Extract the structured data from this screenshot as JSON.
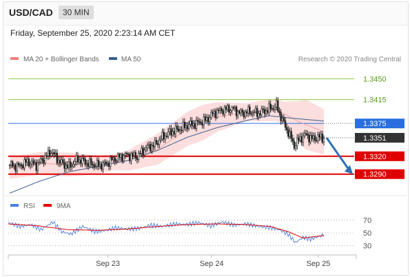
{
  "header": {
    "symbol": "USD/CAD",
    "timeframe": "30 MIN",
    "datetime": "Friday, September 25, 2020 2:23:14 AM CET"
  },
  "legend": {
    "items": [
      {
        "label": "MA 20 + Bollinger Bands",
        "color": "#f08080"
      },
      {
        "label": "MA 50",
        "color": "#3a5f8f"
      }
    ],
    "credit": "Research © 2020 Trading Central"
  },
  "colors": {
    "support": "#e00000",
    "pivot": "#2a6fe0",
    "resistance": "#8cc63f",
    "current": "#333333",
    "ma50": "#3a5f8f",
    "bollinger": "#fbd3d3",
    "rsi": "#4a7fe0",
    "rsi_ma": "#e00000",
    "arrow": "#2d6fb5"
  },
  "chart_data": [
    {
      "type": "candlestick",
      "title": "USD/CAD 30 MIN",
      "xlabel": "",
      "ylabel": "",
      "ylim": [
        1.3255,
        1.347
      ],
      "x_ticks": [
        "Sep 23",
        "Sep 24",
        "Sep 25"
      ],
      "levels": [
        {
          "label": "1.3450",
          "value": 1.345,
          "kind": "resistance"
        },
        {
          "label": "1.3415",
          "value": 1.3415,
          "kind": "resistance"
        },
        {
          "label": "1.3375",
          "value": 1.3375,
          "kind": "pivot"
        },
        {
          "label": "1.3351",
          "value": 1.3351,
          "kind": "current"
        },
        {
          "label": "1.3320",
          "value": 1.332,
          "kind": "support"
        },
        {
          "label": "1.3290",
          "value": 1.329,
          "kind": "support"
        }
      ],
      "close_anchors": [
        [
          0,
          1.3305
        ],
        [
          6,
          1.3303
        ],
        [
          12,
          1.3311
        ],
        [
          18,
          1.3305
        ],
        [
          24,
          1.3318
        ],
        [
          28,
          1.3328
        ],
        [
          34,
          1.331
        ],
        [
          40,
          1.3302
        ],
        [
          46,
          1.3315
        ],
        [
          52,
          1.3309
        ],
        [
          58,
          1.3305
        ],
        [
          64,
          1.3306
        ],
        [
          70,
          1.3315
        ],
        [
          78,
          1.3322
        ],
        [
          86,
          1.332
        ],
        [
          92,
          1.3334
        ],
        [
          98,
          1.3339
        ],
        [
          102,
          1.335
        ],
        [
          108,
          1.336
        ],
        [
          114,
          1.3365
        ],
        [
          120,
          1.3372
        ],
        [
          126,
          1.3375
        ],
        [
          132,
          1.338
        ],
        [
          138,
          1.3393
        ],
        [
          144,
          1.3398
        ],
        [
          150,
          1.34
        ],
        [
          156,
          1.3392
        ],
        [
          162,
          1.3395
        ],
        [
          168,
          1.3392
        ],
        [
          174,
          1.3398
        ],
        [
          180,
          1.3405
        ],
        [
          184,
          1.338
        ],
        [
          188,
          1.336
        ],
        [
          192,
          1.3338
        ],
        [
          196,
          1.335
        ],
        [
          200,
          1.3356
        ],
        [
          204,
          1.3349
        ],
        [
          208,
          1.3352
        ],
        [
          212,
          1.3351
        ]
      ],
      "ma50_anchors": [
        [
          0,
          1.3258
        ],
        [
          20,
          1.3278
        ],
        [
          40,
          1.3294
        ],
        [
          60,
          1.3303
        ],
        [
          80,
          1.3313
        ],
        [
          100,
          1.333
        ],
        [
          120,
          1.3352
        ],
        [
          140,
          1.3368
        ],
        [
          160,
          1.338
        ],
        [
          175,
          1.3388
        ],
        [
          190,
          1.3384
        ],
        [
          212,
          1.3379
        ]
      ],
      "ma20_anchors": [
        [
          0,
          1.33
        ],
        [
          20,
          1.3308
        ],
        [
          40,
          1.3306
        ],
        [
          60,
          1.3306
        ],
        [
          80,
          1.3313
        ],
        [
          100,
          1.3332
        ],
        [
          120,
          1.3366
        ],
        [
          140,
          1.3386
        ],
        [
          160,
          1.3394
        ],
        [
          180,
          1.3398
        ],
        [
          195,
          1.3378
        ],
        [
          212,
          1.3361
        ]
      ],
      "band_width_anchors": [
        [
          0,
          0.0018
        ],
        [
          40,
          0.002
        ],
        [
          70,
          0.0013
        ],
        [
          100,
          0.0026
        ],
        [
          130,
          0.003
        ],
        [
          160,
          0.0015
        ],
        [
          185,
          0.002
        ],
        [
          200,
          0.0042
        ],
        [
          212,
          0.0038
        ]
      ],
      "forecast_arrow": {
        "from": 1.3351,
        "to": 1.329
      }
    },
    {
      "type": "line",
      "title": "",
      "ylim": [
        20,
        80
      ],
      "y_ticks": [
        70,
        50,
        30
      ],
      "x_ticks": [
        "Sep 23",
        "Sep 24",
        "Sep 25"
      ],
      "series": [
        {
          "name": "RSI",
          "anchors": [
            [
              0,
              66
            ],
            [
              8,
              60
            ],
            [
              15,
              63
            ],
            [
              22,
              55
            ],
            [
              30,
              67
            ],
            [
              36,
              52
            ],
            [
              42,
              48
            ],
            [
              50,
              60
            ],
            [
              58,
              52
            ],
            [
              66,
              54
            ],
            [
              72,
              58
            ],
            [
              80,
              56
            ],
            [
              88,
              57
            ],
            [
              96,
              62
            ],
            [
              104,
              60
            ],
            [
              112,
              64
            ],
            [
              120,
              63
            ],
            [
              128,
              66
            ],
            [
              136,
              61
            ],
            [
              144,
              67
            ],
            [
              152,
              62
            ],
            [
              160,
              64
            ],
            [
              168,
              60
            ],
            [
              176,
              58
            ],
            [
              182,
              55
            ],
            [
              188,
              48
            ],
            [
              193,
              35
            ],
            [
              198,
              43
            ],
            [
              203,
              40
            ],
            [
              208,
              44
            ],
            [
              212,
              47
            ]
          ]
        },
        {
          "name": "9MA",
          "anchors": [
            [
              0,
              64
            ],
            [
              20,
              61
            ],
            [
              40,
              55
            ],
            [
              60,
              54
            ],
            [
              80,
              56
            ],
            [
              100,
              60
            ],
            [
              120,
              63
            ],
            [
              140,
              64
            ],
            [
              160,
              63
            ],
            [
              176,
              60
            ],
            [
              188,
              52
            ],
            [
              198,
              42
            ],
            [
              212,
              46
            ]
          ]
        }
      ]
    }
  ]
}
